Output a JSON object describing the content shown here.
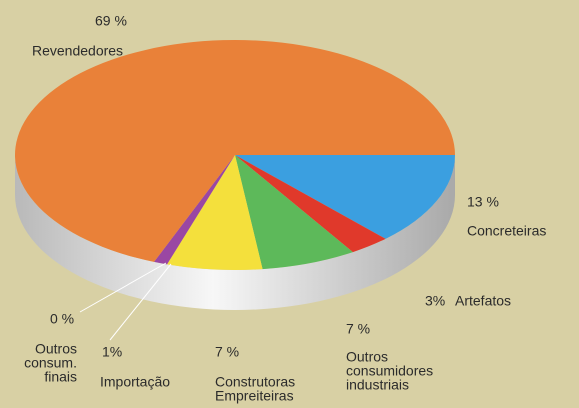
{
  "chart_data": {
    "type": "pie",
    "categories": [
      [
        "Concreteiras"
      ],
      [
        "Artefatos"
      ],
      [
        "Outros",
        "consumidores",
        "industriais"
      ],
      [
        "Construtoras",
        "Empreiteiras"
      ],
      [
        "Importação"
      ],
      [
        "Outros",
        "consum.",
        "finais"
      ],
      [
        "Revendedores"
      ]
    ],
    "values": [
      13,
      3,
      7,
      7,
      1,
      0,
      69
    ],
    "value_labels": [
      "13 %",
      "3%",
      "7 %",
      "7 %",
      "1%",
      "0 %",
      "69 %"
    ],
    "colors": [
      "#3b9fe0",
      "#e0392b",
      "#5db95a",
      "#f4e03c",
      "#9a47a3",
      "#c0c0c0",
      "#e98139"
    ]
  }
}
